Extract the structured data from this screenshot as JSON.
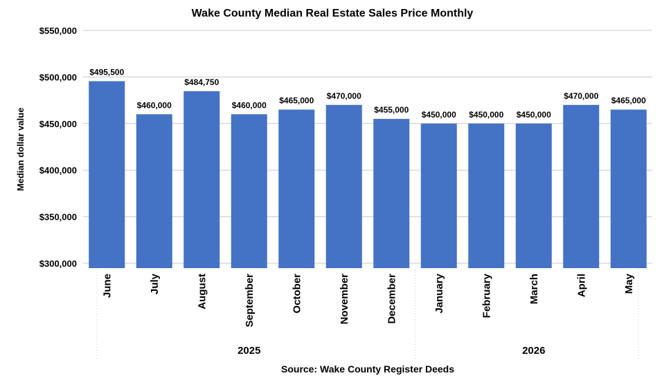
{
  "chart_data": {
    "type": "bar",
    "title": "Wake County Median Real Estate Sales Price Monthly",
    "ylabel": "Median dollar value",
    "xlabel": "Source: Wake County Register Deeds",
    "categories": [
      "June",
      "July",
      "August",
      "September",
      "October",
      "November",
      "December",
      "January",
      "February",
      "March",
      "April",
      "May"
    ],
    "groups": [
      {
        "label": "2025",
        "count": 7
      },
      {
        "label": "2026",
        "count": 5
      }
    ],
    "values": [
      495500,
      460000,
      484750,
      460000,
      465000,
      470000,
      455000,
      450000,
      450000,
      450000,
      470000,
      465000
    ],
    "value_labels": [
      "$495,500",
      "$460,000",
      "$484,750",
      "$460,000",
      "$465,000",
      "$470,000",
      "$455,000",
      "$450,000",
      "$450,000",
      "$450,000",
      "$470,000",
      "$465,000"
    ],
    "yticks": [
      300000,
      350000,
      400000,
      450000,
      500000,
      550000
    ],
    "ytick_labels": [
      "$300,000",
      "$350,000",
      "$400,000",
      "$450,000",
      "$500,000",
      "$550,000"
    ],
    "ylim": [
      300000,
      550000
    ],
    "grid": true,
    "bar_color": "#4472C4",
    "grid_color": "#C8C8C8"
  }
}
